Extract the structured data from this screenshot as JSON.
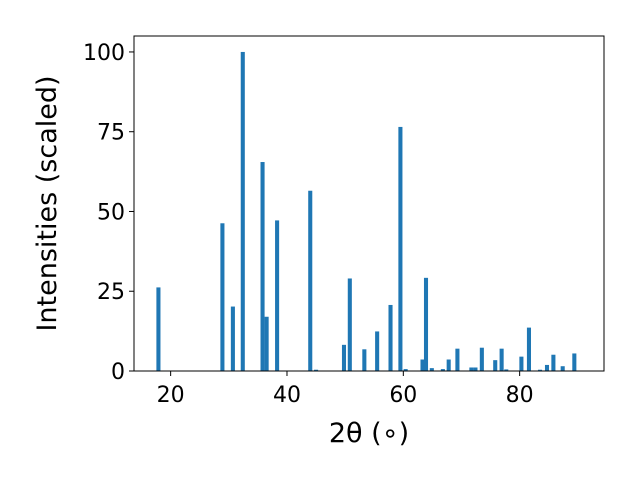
{
  "chart_data": {
    "type": "bar",
    "xlabel": "2θ (∘)",
    "ylabel": "Intensities (scaled)",
    "title": "",
    "xlim": [
      13.7,
      94.5
    ],
    "ylim": [
      0,
      105
    ],
    "xticks": [
      20,
      40,
      60,
      80
    ],
    "yticks": [
      0,
      25,
      50,
      75,
      100
    ],
    "grid": false,
    "bar_color": "#1f77b4",
    "bar_width": 0.7,
    "points": [
      {
        "x": 17.9,
        "y": 26.2
      },
      {
        "x": 28.9,
        "y": 46.3
      },
      {
        "x": 30.7,
        "y": 20.2
      },
      {
        "x": 32.4,
        "y": 100
      },
      {
        "x": 35.8,
        "y": 65.5
      },
      {
        "x": 36.5,
        "y": 17.0
      },
      {
        "x": 38.3,
        "y": 47.2
      },
      {
        "x": 44.0,
        "y": 56.5
      },
      {
        "x": 45.0,
        "y": 0.4
      },
      {
        "x": 49.8,
        "y": 8.2
      },
      {
        "x": 50.8,
        "y": 29.0
      },
      {
        "x": 53.3,
        "y": 6.8
      },
      {
        "x": 55.5,
        "y": 12.4
      },
      {
        "x": 57.8,
        "y": 20.7
      },
      {
        "x": 59.5,
        "y": 76.5
      },
      {
        "x": 60.4,
        "y": 0.6
      },
      {
        "x": 63.3,
        "y": 3.6
      },
      {
        "x": 63.9,
        "y": 29.2
      },
      {
        "x": 64.9,
        "y": 0.9
      },
      {
        "x": 66.8,
        "y": 0.6
      },
      {
        "x": 67.8,
        "y": 3.6
      },
      {
        "x": 69.3,
        "y": 7.0
      },
      {
        "x": 71.7,
        "y": 1.1
      },
      {
        "x": 72.4,
        "y": 1.1
      },
      {
        "x": 73.5,
        "y": 7.3
      },
      {
        "x": 75.8,
        "y": 3.4
      },
      {
        "x": 76.9,
        "y": 7.0
      },
      {
        "x": 77.7,
        "y": 0.5
      },
      {
        "x": 80.3,
        "y": 4.5
      },
      {
        "x": 81.6,
        "y": 13.6
      },
      {
        "x": 83.5,
        "y": 0.4
      },
      {
        "x": 84.7,
        "y": 1.9
      },
      {
        "x": 85.8,
        "y": 5.1
      },
      {
        "x": 87.4,
        "y": 1.5
      },
      {
        "x": 89.4,
        "y": 5.5
      }
    ]
  }
}
